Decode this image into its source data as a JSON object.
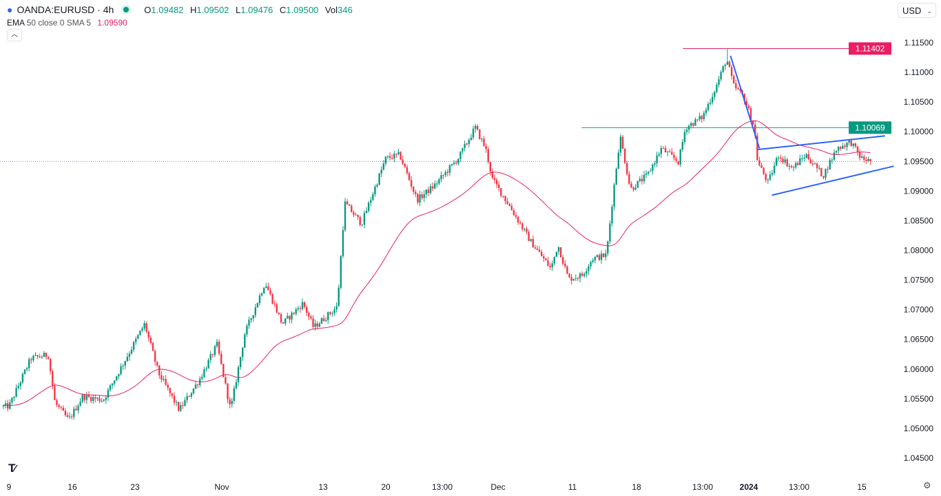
{
  "header": {
    "symbol": "OANDA:EURUSD · 4h",
    "open_label": "O",
    "open": "1.09482",
    "high_label": "H",
    "high": "1.09502",
    "low_label": "L",
    "low": "1.09476",
    "close_label": "C",
    "close": "1.09500",
    "vol_label": "Vol",
    "vol": "346",
    "status_icon": "market-open-dot",
    "collapse_icon": "chevron-up"
  },
  "indicator": {
    "name": "EMA",
    "params": "50 close 0 SMA 5",
    "value": "1.09590",
    "color": "#e91e63"
  },
  "currency": {
    "label": "USD",
    "icon": "chevron-down"
  },
  "logo_text": "TV",
  "colors": {
    "up": "#089981",
    "down": "#f23645",
    "ema": "#e91e63",
    "trendline": "#2962ff",
    "resistance": "#e91e63",
    "support": "#089981"
  },
  "chart_data": {
    "type": "candlestick",
    "symbol": "EURUSD",
    "timeframe": "4h",
    "ylim": [
      1.042,
      1.117
    ],
    "y_ticks": [
      "1.11500",
      "1.11000",
      "1.10500",
      "1.10000",
      "1.09500",
      "1.09000",
      "1.08500",
      "1.08000",
      "1.07500",
      "1.07000",
      "1.06500",
      "1.06000",
      "1.05500",
      "1.05000",
      "1.04500"
    ],
    "x_ticks": [
      {
        "label": "9",
        "date": "2023-10-09T00:00"
      },
      {
        "label": "16",
        "date": "2023-10-16T00:00"
      },
      {
        "label": "23",
        "date": "2023-10-23T00:00"
      },
      {
        "label": "Nov",
        "date": "2023-11-01T00:00"
      },
      {
        "label": "13",
        "date": "2023-11-13T00:00"
      },
      {
        "label": "20",
        "date": "2023-11-20T00:00"
      },
      {
        "label": "13:00",
        "date": "2023-11-23T13:00"
      },
      {
        "label": "Dec",
        "date": "2023-12-01T00:00"
      },
      {
        "label": "11",
        "date": "2023-12-11T00:00"
      },
      {
        "label": "18",
        "date": "2023-12-18T00:00"
      },
      {
        "label": "13:00",
        "date": "2023-12-26T13:00"
      },
      {
        "label": "2024",
        "date": "2024-01-01T00:00"
      },
      {
        "label": "13:00",
        "date": "2024-01-05T13:00"
      },
      {
        "label": "15",
        "date": "2024-01-15T00:00"
      }
    ],
    "price_path": [
      [
        "2023-10-09T00:00",
        1.0537
      ],
      [
        "2023-10-11T10:00",
        1.0618
      ],
      [
        "2023-10-13T08:00",
        1.0624
      ],
      [
        "2023-10-14T02:00",
        1.0543
      ],
      [
        "2023-10-15T14:00",
        1.0514
      ],
      [
        "2023-10-17T04:00",
        1.0554
      ],
      [
        "2023-10-19T11:00",
        1.0548
      ],
      [
        "2023-10-21T09:00",
        1.0601
      ],
      [
        "2023-10-24T00:00",
        1.0676
      ],
      [
        "2023-10-25T10:00",
        1.0594
      ],
      [
        "2023-10-27T14:00",
        1.0531
      ],
      [
        "2023-10-29T17:00",
        1.0583
      ],
      [
        "2023-10-31T12:00",
        1.0641
      ],
      [
        "2023-11-02T01:00",
        1.0531
      ],
      [
        "2023-11-03T17:00",
        1.0659
      ],
      [
        "2023-11-06T03:00",
        1.0746
      ],
      [
        "2023-11-08T04:00",
        1.0676
      ],
      [
        "2023-11-10T15:00",
        1.0711
      ],
      [
        "2023-11-11T21:00",
        1.067
      ],
      [
        "2023-11-14T14:00",
        1.0705
      ],
      [
        "2023-11-15T10:00",
        1.088
      ],
      [
        "2023-11-17T07:00",
        1.0845
      ],
      [
        "2023-11-20T00:00",
        1.0955
      ],
      [
        "2023-11-20T21:00",
        1.0961
      ],
      [
        "2023-11-21T23:00",
        1.0885
      ],
      [
        "2023-11-23T00:00",
        1.0908
      ],
      [
        "2023-11-25T16:00",
        1.0955
      ],
      [
        "2023-11-27T23:00",
        1.1007
      ],
      [
        "2023-11-29T08:00",
        1.0972
      ],
      [
        "2023-11-30T06:00",
        1.092
      ],
      [
        "2023-12-02T14:00",
        1.0874
      ],
      [
        "2023-12-05T08:00",
        1.0816
      ],
      [
        "2023-12-08T03:00",
        1.0769
      ],
      [
        "2023-12-09T01:00",
        1.081
      ],
      [
        "2023-12-10T11:00",
        1.0752
      ],
      [
        "2023-12-12T01:00",
        1.0758
      ],
      [
        "2023-12-13T04:00",
        1.0786
      ],
      [
        "2023-12-14T17:00",
        1.0792
      ],
      [
        "2023-12-15T11:00",
        1.0897
      ],
      [
        "2023-12-16T05:00",
        1.0993
      ],
      [
        "2023-12-17T08:00",
        1.0903
      ],
      [
        "2023-12-19T10:00",
        1.0927
      ],
      [
        "2023-12-21T05:00",
        1.0972
      ],
      [
        "2023-12-23T10:00",
        1.0949
      ],
      [
        "2023-12-24T08:00",
        1.1007
      ],
      [
        "2023-12-26T13:00",
        1.1025
      ],
      [
        "2023-12-28T04:00",
        1.1077
      ],
      [
        "2023-12-29T09:00",
        1.1123
      ],
      [
        "2023-12-30T05:00",
        1.1077
      ],
      [
        "2023-12-31T10:00",
        1.1059
      ],
      [
        "2024-01-01T12:00",
        1.1007
      ],
      [
        "2024-01-01T19:00",
        1.0949
      ],
      [
        "2024-01-02T18:00",
        1.0914
      ],
      [
        "2024-01-03T16:00",
        1.0961
      ],
      [
        "2024-01-04T22:00",
        1.0938
      ],
      [
        "2024-01-06T14:00",
        1.0961
      ],
      [
        "2024-01-09T04:00",
        1.0926
      ],
      [
        "2024-01-11T06:00",
        1.0972
      ],
      [
        "2024-01-13T08:00",
        1.0983
      ],
      [
        "2024-01-14T22:00",
        1.0955
      ],
      [
        "2024-01-16T11:00",
        1.095
      ]
    ],
    "period_high": 1.11402,
    "last_price": 1.095,
    "horizontal_levels": [
      {
        "label": "1.11402",
        "price": 1.11402,
        "color": "#e91e63",
        "from": "2023-12-24T00:00"
      },
      {
        "label": "1.10069",
        "price": 1.10069,
        "color": "#089981",
        "from": "2023-12-12T00:00"
      }
    ],
    "trendlines": [
      {
        "from": [
          "2023-12-29T20:00",
          1.1128
        ],
        "to": [
          "2024-01-01T23:00",
          1.0972
        ]
      },
      {
        "from": [
          "2024-01-01T20:00",
          1.097
        ],
        "to": [
          "2024-01-18T12:00",
          1.0993
        ]
      },
      {
        "from": [
          "2024-01-03T02:00",
          1.0893
        ],
        "to": [
          "2024-01-19T20:00",
          1.0942
        ]
      }
    ],
    "ema": {
      "period": 50,
      "source": "close",
      "smoothing": "SMA",
      "smoothing_length": 5
    }
  }
}
